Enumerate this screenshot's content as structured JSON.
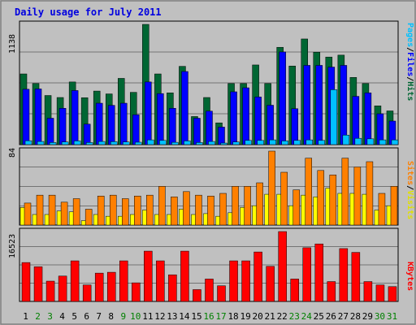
{
  "chart_data": {
    "type": "bar",
    "title": "Daily usage for July 2011",
    "days": [
      "1",
      "2",
      "3",
      "4",
      "5",
      "6",
      "7",
      "8",
      "9",
      "10",
      "11",
      "12",
      "13",
      "14",
      "15",
      "16",
      "17",
      "18",
      "19",
      "20",
      "21",
      "22",
      "23",
      "24",
      "25",
      "26",
      "27",
      "28",
      "29",
      "30",
      "31"
    ],
    "weekend_days": [
      "2",
      "3",
      "9",
      "10",
      "16",
      "17",
      "23",
      "24",
      "30",
      "31"
    ],
    "panels": [
      {
        "id": "hits-files-pages",
        "y_max_label": "1138",
        "ylim": [
          0,
          1138
        ],
        "series": [
          {
            "name": "Hits",
            "color": "#006633",
            "values": [
              669,
              578,
              465,
              446,
              593,
              444,
              507,
              480,
              627,
              495,
              1138,
              669,
              490,
              741,
              266,
              446,
              206,
              578,
              578,
              754,
              578,
              921,
              744,
              1000,
              875,
              829,
              847,
              636,
              578,
              367,
              319
            ]
          },
          {
            "name": "Files",
            "color": "#0000ff",
            "values": [
              524,
              527,
              250,
              344,
              512,
              194,
              392,
              372,
              392,
              283,
              593,
              483,
              344,
              692,
              250,
              317,
              166,
              500,
              538,
              451,
              373,
              877,
              340,
              750,
              750,
              734,
              750,
              457,
              490,
              292,
              223
            ]
          },
          {
            "name": "Pages",
            "color": "#00c0ff",
            "values": [
              37,
              30,
              20,
              25,
              35,
              20,
              30,
              28,
              25,
              23,
              45,
              40,
              22,
              35,
              20,
              30,
              15,
              25,
              40,
              40,
              45,
              35,
              40,
              45,
              40,
              520,
              90,
              60,
              55,
              45,
              45
            ]
          }
        ]
      },
      {
        "id": "visits-sites",
        "y_max_label": "84",
        "ylim": [
          0,
          84
        ],
        "series": [
          {
            "name": "Visits",
            "color": "#ffff00",
            "values": [
              20,
              12,
              12,
              16,
              15,
              5,
              12,
              10,
              10,
              12,
              17,
              12,
              12,
              18,
              12,
              13,
              10,
              14,
              20,
              22,
              35,
              35,
              22,
              34,
              32,
              42,
              36,
              36,
              35,
              17,
              22
            ]
          },
          {
            "name": "Sites",
            "color": "#ff8000",
            "values": [
              25,
              34,
              34,
              26,
              30,
              18,
              33,
              34,
              30,
              33,
              34,
              44,
              32,
              38,
              34,
              33,
              36,
              44,
              44,
              48,
              84,
              60,
              40,
              76,
              62,
              57,
              76,
              66,
              72,
              36,
              44
            ]
          }
        ]
      },
      {
        "id": "kbytes",
        "y_max_label": "16523",
        "ylim": [
          0,
          16523
        ],
        "series": [
          {
            "name": "KBytes",
            "color": "#ff0000",
            "values": [
              9200,
              8200,
              4800,
              6000,
              9600,
              3900,
              6700,
              6900,
              9600,
              4400,
              11900,
              9600,
              6300,
              11900,
              2800,
              5300,
              3700,
              9600,
              9600,
              11700,
              8300,
              16523,
              5300,
              12700,
              13600,
              4700,
              12500,
              11600,
              4700,
              3900,
              3500
            ]
          }
        ]
      }
    ],
    "legends": {
      "hits": [
        "Pages",
        "Files",
        "Hits"
      ],
      "visits": [
        "Sites",
        "Visits"
      ],
      "kb": [
        "KBytes"
      ]
    }
  }
}
